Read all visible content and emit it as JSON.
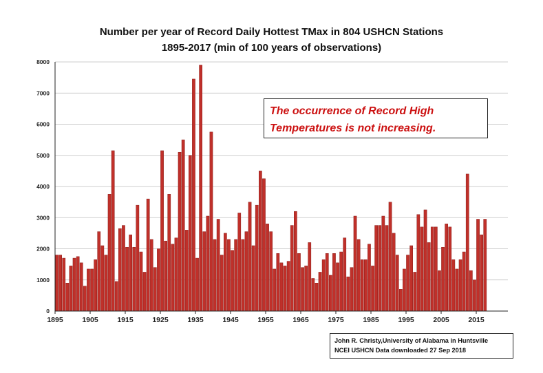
{
  "chart_data": {
    "type": "bar",
    "title": "Number per year of Record Daily Hottest TMax in 804 USHCN Stations",
    "subtitle": "1895-2017 (min of 100 years of observations)",
    "xlabel": "",
    "ylabel": "",
    "ylim": [
      0,
      8000
    ],
    "yticks": [
      0,
      1000,
      2000,
      3000,
      4000,
      5000,
      6000,
      7000,
      8000
    ],
    "xticks": [
      1895,
      1905,
      1915,
      1925,
      1935,
      1945,
      1955,
      1965,
      1975,
      1985,
      1995,
      2005,
      2015
    ],
    "grid": true,
    "bar_color": "#c0302a",
    "annotation": [
      "The occurrence of Record High",
      "Temperatures is not increasing."
    ],
    "annotation_color": "#cc1111",
    "x_start": 1895,
    "values": [
      1800,
      1800,
      1700,
      900,
      1450,
      1700,
      1750,
      1550,
      800,
      1350,
      1350,
      1650,
      2550,
      2100,
      1800,
      3750,
      5150,
      950,
      2650,
      2750,
      2050,
      2450,
      2050,
      3400,
      1900,
      1250,
      3600,
      2300,
      1400,
      2000,
      5150,
      2250,
      3750,
      2150,
      2350,
      5100,
      5500,
      2600,
      5000,
      7450,
      1700,
      7900,
      2550,
      3050,
      5750,
      2300,
      2950,
      1800,
      2500,
      2300,
      1950,
      2300,
      3150,
      2300,
      2550,
      3500,
      2100,
      3400,
      4500,
      4250,
      2800,
      2550,
      1350,
      1850,
      1550,
      1450,
      1600,
      2750,
      3200,
      1850,
      1400,
      1450,
      2200,
      1050,
      900,
      1250,
      1650,
      1850,
      1150,
      1850,
      1550,
      1900,
      2350,
      1100,
      1400,
      3050,
      2300,
      1650,
      1650,
      2150,
      1450,
      2750,
      2750,
      3050,
      2750,
      3500,
      2500,
      1800,
      700,
      1350,
      1800,
      2100,
      1250,
      3100,
      2700,
      3250,
      2200,
      2700,
      2700,
      1300,
      2050,
      2800,
      2700,
      1650,
      1350,
      1650,
      1900,
      4400,
      1300,
      1000,
      2950,
      2450,
      2950
    ]
  },
  "credit": {
    "line1": "John R. Christy,University of Alabama in Huntsville",
    "line2": "NCEI USHCN Data downloaded 27 Sep 2018"
  }
}
